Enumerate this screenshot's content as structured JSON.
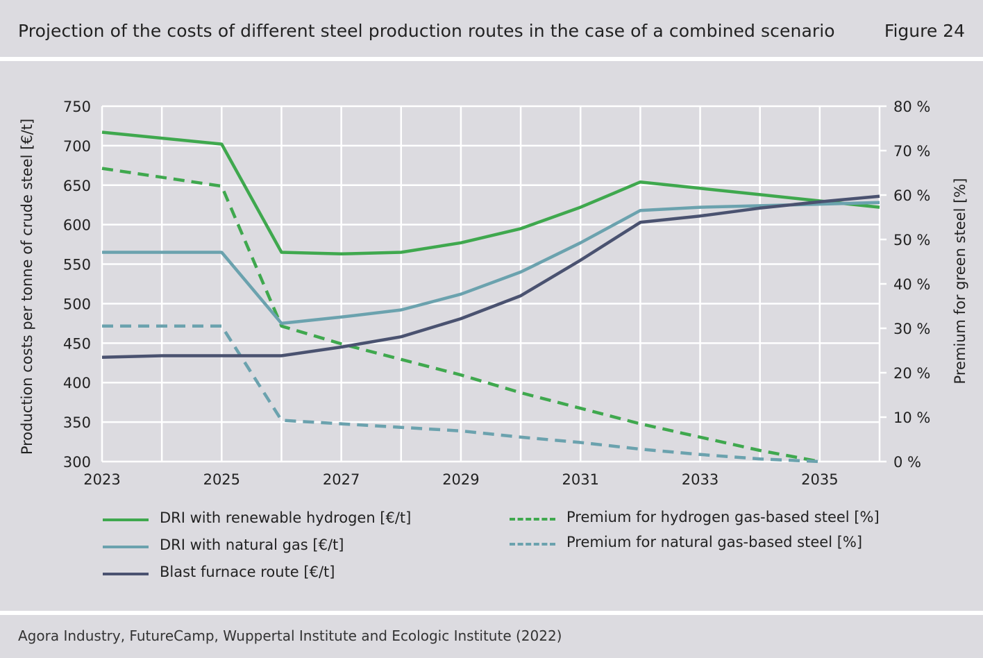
{
  "header": {
    "title": "Projection of the costs of different steel production routes in the case of a combined scenario",
    "figure_label": "Figure 24"
  },
  "footer": {
    "source": "Agora Industry, FutureCamp, Wuppertal Institute and Ecologic Institute (2022)"
  },
  "colors": {
    "background": "#dcdbe0",
    "grid": "#ffffff",
    "green": "#3fa84e",
    "teal": "#6ba2ae",
    "navy": "#4a5270"
  },
  "chart_data": {
    "type": "line",
    "xlabel": "",
    "ylabel": "Production costs per tonne of crude steel [€/t]",
    "y2label": "Premium for green steel [%]",
    "xlim": [
      2023,
      2036
    ],
    "ylim": [
      300,
      750
    ],
    "y2lim": [
      0,
      80
    ],
    "x_ticks": [
      "2023",
      "2025",
      "2027",
      "2029",
      "2031",
      "2033",
      "2035"
    ],
    "y_ticks": [
      "300",
      "350",
      "400",
      "450",
      "500",
      "550",
      "600",
      "650",
      "700",
      "750"
    ],
    "y2_ticks": [
      "0 %",
      "10 %",
      "20 %",
      "30 %",
      "40 %",
      "50 %",
      "60 %",
      "70 %",
      "80 %"
    ],
    "grid": true,
    "legend_position": "bottom",
    "series": [
      {
        "name": "DRI with renewable hydrogen [€/t]",
        "axis": "left",
        "style": "solid",
        "color": "#3fa84e",
        "x": [
          2023,
          2025,
          2026,
          2027,
          2028,
          2029,
          2030,
          2031,
          2032,
          2033,
          2034,
          2035,
          2036
        ],
        "values": [
          717,
          702,
          565,
          563,
          565,
          577,
          595,
          622,
          654,
          646,
          638,
          630,
          622
        ]
      },
      {
        "name": "DRI with natural gas [€/t]",
        "axis": "left",
        "style": "solid",
        "color": "#6ba2ae",
        "x": [
          2023,
          2025,
          2026,
          2027,
          2028,
          2029,
          2030,
          2031,
          2032,
          2033,
          2034,
          2035,
          2036
        ],
        "values": [
          565,
          565,
          475,
          483,
          492,
          512,
          540,
          577,
          618,
          622,
          624,
          626,
          628
        ]
      },
      {
        "name": "Blast furnace route [€/t]",
        "axis": "left",
        "style": "solid",
        "color": "#4a5270",
        "x": [
          2023,
          2024,
          2025,
          2026,
          2027,
          2028,
          2029,
          2030,
          2031,
          2032,
          2033,
          2034,
          2035,
          2036
        ],
        "values": [
          432,
          434,
          434,
          434,
          445,
          458,
          481,
          510,
          555,
          603,
          611,
          621,
          629,
          636
        ]
      },
      {
        "name": "Premium for hydrogen gas-based steel [%]",
        "axis": "right",
        "style": "dashed",
        "color": "#3fa84e",
        "x": [
          2023,
          2025,
          2026,
          2027,
          2028,
          2029,
          2030,
          2031,
          2032,
          2033,
          2034,
          2035
        ],
        "values": [
          66,
          62,
          30.5,
          26.5,
          23,
          19.5,
          15.5,
          12,
          8.5,
          5.5,
          2.5,
          0
        ]
      },
      {
        "name": "Premium for natural gas-based steel [%]",
        "axis": "right",
        "style": "dashed",
        "color": "#6ba2ae",
        "x": [
          2023,
          2025,
          2026,
          2027,
          2028,
          2029,
          2030,
          2031,
          2032,
          2033,
          2034,
          2035
        ],
        "values": [
          30.5,
          30.5,
          9.3,
          8.5,
          7.7,
          6.9,
          5.5,
          4.3,
          2.8,
          1.6,
          0.6,
          0
        ]
      }
    ]
  },
  "legend": {
    "items": [
      {
        "label": "DRI with renewable hydrogen [€/t]",
        "color": "#3fa84e",
        "style": "solid"
      },
      {
        "label": "DRI with natural gas [€/t]",
        "color": "#6ba2ae",
        "style": "solid"
      },
      {
        "label": "Blast furnace route [€/t]",
        "color": "#4a5270",
        "style": "solid"
      },
      {
        "label": "Premium for hydrogen gas-based steel [%]",
        "color": "#3fa84e",
        "style": "dashed"
      },
      {
        "label": "Premium for natural gas-based steel [%]",
        "color": "#6ba2ae",
        "style": "dashed"
      }
    ]
  }
}
